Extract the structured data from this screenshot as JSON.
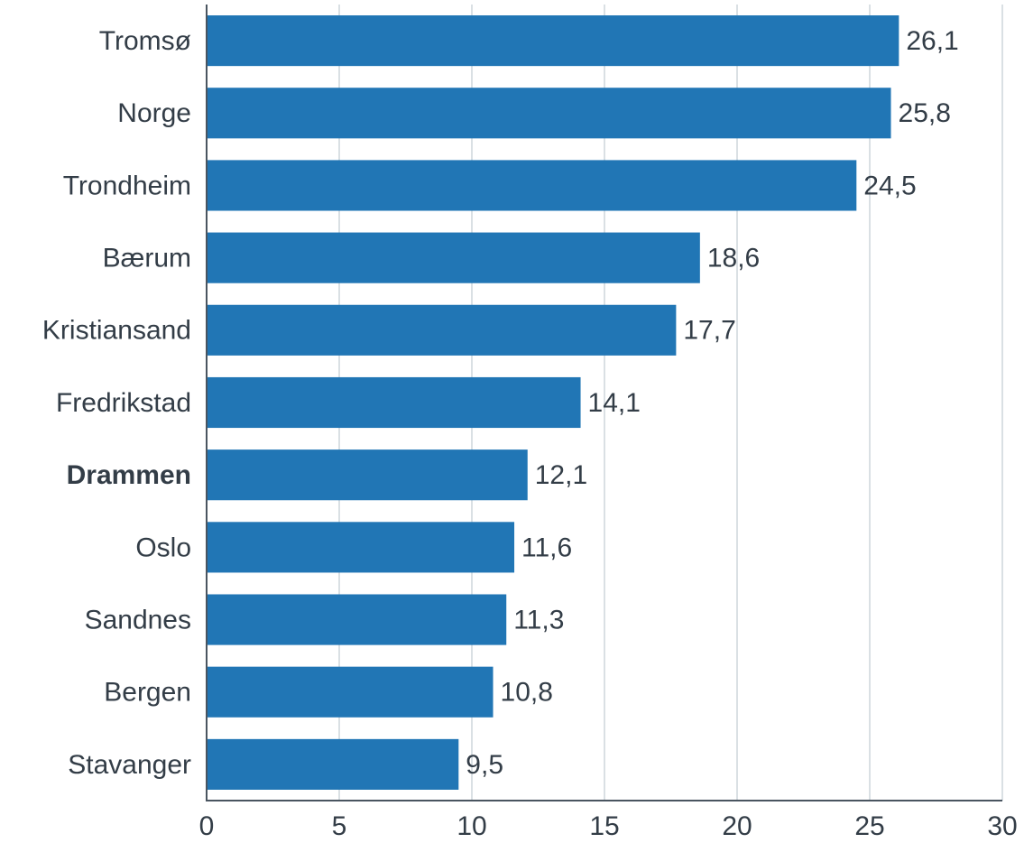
{
  "chart_data": {
    "type": "barh",
    "categories": [
      "Tromsø",
      "Norge",
      "Trondheim",
      "Bærum",
      "Kristiansand",
      "Fredrikstad",
      "Drammen",
      "Oslo",
      "Sandnes",
      "Bergen",
      "Stavanger"
    ],
    "values": [
      26.1,
      25.8,
      24.5,
      18.6,
      17.7,
      14.1,
      12.1,
      11.6,
      11.3,
      10.8,
      9.5
    ],
    "value_labels": [
      "26,1",
      "25,8",
      "24,5",
      "18,6",
      "17,7",
      "14,1",
      "12,1",
      "11,6",
      "11,3",
      "10,8",
      "9,5"
    ],
    "color": "#2176b5",
    "highlight": "Drammen",
    "xlim": [
      0,
      30
    ],
    "xticks": [
      0,
      5,
      10,
      15,
      20,
      25,
      30
    ],
    "grid": true
  }
}
